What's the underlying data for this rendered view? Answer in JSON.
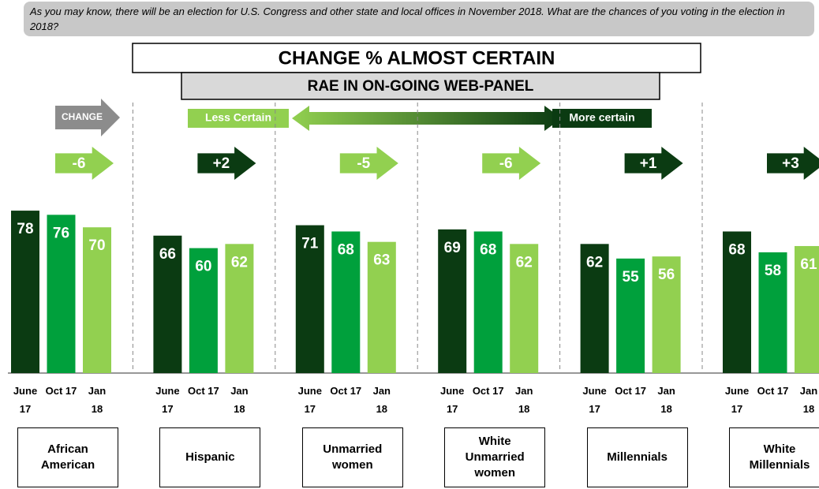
{
  "question": "As you may know, there will be an election for U.S. Congress and other state and local offices in November 2018. What are the chances of you voting in the election in 2018?",
  "chart_data": {
    "type": "bar",
    "title": "CHANGE % ALMOST CERTAIN",
    "subtitle": "RAE IN ON-GOING WEB-PANEL",
    "categories": [
      "African American",
      "Hispanic",
      "Unmarried women",
      "White Unmarried women",
      "Millennials",
      "White Millennials"
    ],
    "series": [
      {
        "name": "June 17",
        "color": "#0b3b12",
        "values": [
          78,
          66,
          71,
          69,
          62,
          68
        ]
      },
      {
        "name": "Oct 17",
        "color": "#00a03c",
        "values": [
          76,
          60,
          68,
          68,
          55,
          58
        ]
      },
      {
        "name": "Jan 18",
        "color": "#92d050",
        "values": [
          70,
          62,
          63,
          62,
          56,
          61
        ]
      }
    ],
    "change_label": "CHANGE",
    "changes": [
      "-6",
      "+2",
      "-5",
      "-6",
      "+1",
      "+3"
    ],
    "change_colors": [
      "#92d050",
      "#0b3b12",
      "#92d050",
      "#92d050",
      "#0b3b12",
      "#0b3b12"
    ],
    "scale_labels": [
      "Less Certain",
      "More certain"
    ]
  }
}
